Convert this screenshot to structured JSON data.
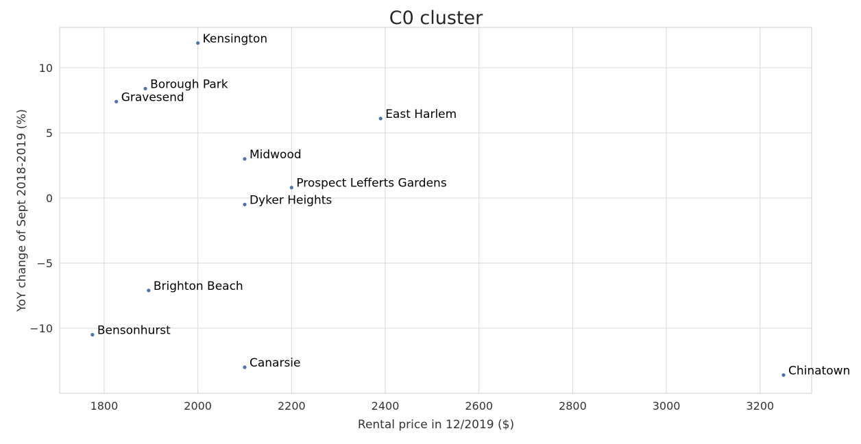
{
  "chart_data": {
    "type": "scatter",
    "title": "C0 cluster",
    "xlabel": "Rental price in 12/2019 ($)",
    "ylabel": "YoY change of Sept 2018-2019 (%)",
    "xlim": [
      1705,
      3310
    ],
    "ylim": [
      -15,
      13.1
    ],
    "xticks": [
      1800,
      2000,
      2200,
      2400,
      2600,
      2800,
      3000,
      3200
    ],
    "yticks": [
      10,
      5,
      0,
      -5,
      -10
    ],
    "ytick_labels": [
      "10",
      "5",
      "0",
      "−5",
      "−10"
    ],
    "grid": true,
    "point_color": "#4c72b0",
    "points": [
      {
        "label": "Kensington",
        "x": 2000,
        "y": 11.9
      },
      {
        "label": "Borough Park",
        "x": 1888,
        "y": 8.4
      },
      {
        "label": "Gravesend",
        "x": 1826,
        "y": 7.4
      },
      {
        "label": "East Harlem",
        "x": 2390,
        "y": 6.1
      },
      {
        "label": "Midwood",
        "x": 2100,
        "y": 3.0
      },
      {
        "label": "Prospect Lefferts Gardens",
        "x": 2200,
        "y": 0.8
      },
      {
        "label": "Dyker Heights",
        "x": 2100,
        "y": -0.5
      },
      {
        "label": "Brighton Beach",
        "x": 1895,
        "y": -7.1
      },
      {
        "label": "Bensonhurst",
        "x": 1775,
        "y": -10.5
      },
      {
        "label": "Canarsie",
        "x": 2100,
        "y": -13.0
      },
      {
        "label": "Chinatown",
        "x": 3250,
        "y": -13.6
      }
    ]
  }
}
